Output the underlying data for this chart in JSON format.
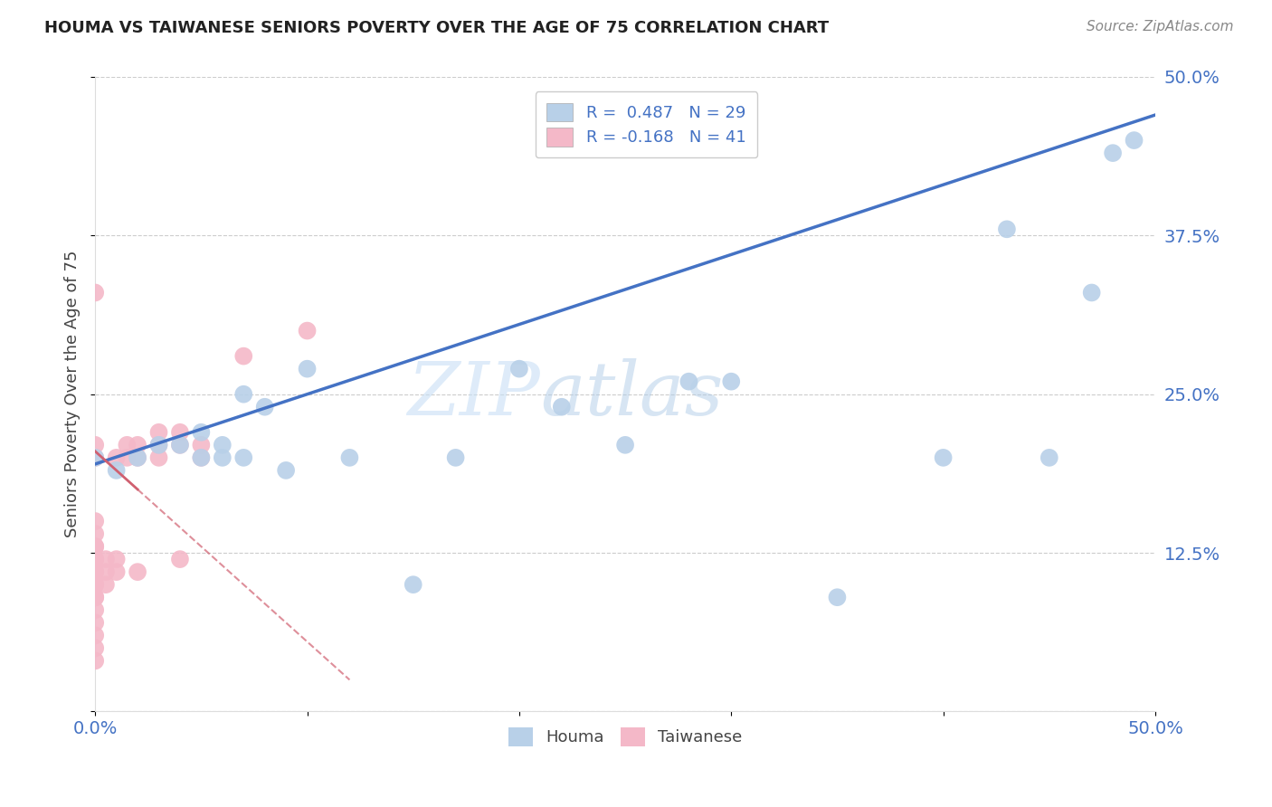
{
  "title": "HOUMA VS TAIWANESE SENIORS POVERTY OVER THE AGE OF 75 CORRELATION CHART",
  "source": "Source: ZipAtlas.com",
  "ylabel": "Seniors Poverty Over the Age of 75",
  "xlabel": "",
  "xlim": [
    0.0,
    0.5
  ],
  "ylim": [
    0.0,
    0.5
  ],
  "houma_R": 0.487,
  "houma_N": 29,
  "taiwanese_R": -0.168,
  "taiwanese_N": 41,
  "houma_color": "#b8d0e8",
  "taiwanese_color": "#f4b8c8",
  "houma_line_color": "#4472c4",
  "taiwanese_line_color": "#d06070",
  "houma_x": [
    0.0,
    0.01,
    0.02,
    0.03,
    0.04,
    0.05,
    0.05,
    0.06,
    0.06,
    0.07,
    0.07,
    0.08,
    0.09,
    0.1,
    0.12,
    0.15,
    0.17,
    0.2,
    0.22,
    0.25,
    0.28,
    0.3,
    0.35,
    0.4,
    0.43,
    0.45,
    0.47,
    0.48,
    0.49
  ],
  "houma_y": [
    0.2,
    0.19,
    0.2,
    0.21,
    0.21,
    0.2,
    0.22,
    0.2,
    0.21,
    0.2,
    0.25,
    0.24,
    0.19,
    0.27,
    0.2,
    0.1,
    0.2,
    0.27,
    0.24,
    0.21,
    0.26,
    0.26,
    0.09,
    0.2,
    0.38,
    0.2,
    0.33,
    0.44,
    0.45
  ],
  "taiwanese_x": [
    0.0,
    0.0,
    0.0,
    0.0,
    0.0,
    0.0,
    0.0,
    0.0,
    0.0,
    0.0,
    0.0,
    0.0,
    0.0,
    0.0,
    0.0,
    0.0,
    0.0,
    0.0,
    0.0,
    0.0,
    0.005,
    0.005,
    0.005,
    0.01,
    0.01,
    0.01,
    0.015,
    0.015,
    0.02,
    0.02,
    0.02,
    0.03,
    0.03,
    0.03,
    0.04,
    0.04,
    0.04,
    0.05,
    0.05,
    0.07,
    0.1
  ],
  "taiwanese_y": [
    0.04,
    0.05,
    0.06,
    0.07,
    0.08,
    0.09,
    0.09,
    0.1,
    0.1,
    0.11,
    0.11,
    0.12,
    0.12,
    0.13,
    0.13,
    0.14,
    0.15,
    0.2,
    0.21,
    0.33,
    0.1,
    0.11,
    0.12,
    0.11,
    0.12,
    0.2,
    0.2,
    0.21,
    0.11,
    0.2,
    0.21,
    0.2,
    0.21,
    0.22,
    0.12,
    0.21,
    0.22,
    0.2,
    0.21,
    0.28,
    0.3
  ],
  "watermark_zip": "ZIP",
  "watermark_atlas": "atlas",
  "background_color": "#ffffff",
  "grid_color": "#cccccc",
  "tick_color": "#4472c4",
  "right_tick_labels": [
    "",
    "12.5%",
    "25.0%",
    "37.5%",
    "50.0%"
  ]
}
